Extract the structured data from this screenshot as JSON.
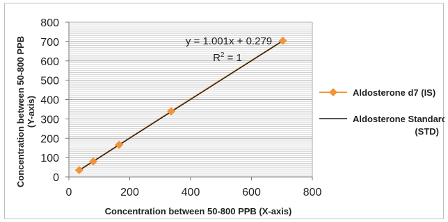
{
  "chart_data": {
    "type": "scatter",
    "xlabel": "Concentration between 50-800 PPB  (X-axis)",
    "ylabel_line1": "Concentration between 50-800 PPB",
    "ylabel_line2": "(Y-axis)",
    "xlim": [
      0,
      800
    ],
    "ylim": [
      0,
      800
    ],
    "xticks": [
      0,
      200,
      400,
      600,
      800
    ],
    "yticks": [
      0,
      100,
      200,
      300,
      400,
      500,
      600,
      700,
      800
    ],
    "grid": true,
    "legend_position": "right",
    "series": [
      {
        "name": "Aldosterone  d7 (IS)",
        "style": "line-marker",
        "marker": "diamond",
        "color": "#f0953c",
        "x": [
          34,
          80,
          165,
          336,
          703
        ],
        "y": [
          35,
          80,
          166,
          339,
          704
        ]
      },
      {
        "name_line1": "Aldosterone Standard",
        "name_line2": "(STD)",
        "style": "line",
        "color": "#1a1a1a",
        "x": [
          34,
          703
        ],
        "y": [
          34.3,
          703.98
        ]
      }
    ],
    "annotations": {
      "equation": "y = 1.001x + 0.279",
      "r2_prefix": "R",
      "r2_sup": "2",
      "r2_suffix": " = 1"
    }
  }
}
